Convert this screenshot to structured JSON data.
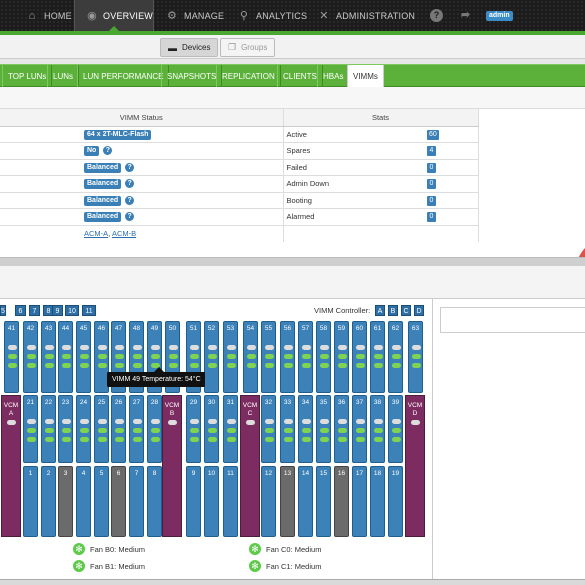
{
  "nav": {
    "items": [
      {
        "label": "HOME",
        "icon": "home-icon"
      },
      {
        "label": "OVERVIEW",
        "icon": "eye-icon"
      },
      {
        "label": "MANAGE",
        "icon": "gear-icon"
      },
      {
        "label": "ANALYTICS",
        "icon": "search-icon"
      },
      {
        "label": "ADMINISTRATION",
        "icon": "tools-icon"
      }
    ],
    "active": "OVERVIEW",
    "user_badge": "admin",
    "help_symbol": "?",
    "share_symbol": "➦"
  },
  "device_toggle": {
    "devices": "Devices",
    "groups": "Groups"
  },
  "tabs": [
    "TOP LUNs",
    "LUNs",
    "LUN PERFORMANCE",
    "SNAPSHOTS",
    "REPLICATION",
    "CLIENTS",
    "HBAs",
    "VIMMs"
  ],
  "active_tab": "VIMMs",
  "status_table": {
    "col_status": "VIMM Status",
    "col_stats": "Stats",
    "rows": [
      {
        "status": "64 x 2T-MLC-Flash",
        "help": false,
        "stat": "Active",
        "value": "60"
      },
      {
        "status": "No",
        "help": true,
        "stat": "Spares",
        "value": "4"
      },
      {
        "status": "Balanced",
        "help": true,
        "stat": "Failed",
        "value": "0"
      },
      {
        "status": "Balanced",
        "help": true,
        "stat": "Admin Down",
        "value": "0"
      },
      {
        "status": "Balanced",
        "help": true,
        "stat": "Booting",
        "value": "0"
      },
      {
        "status": "Balanced",
        "help": true,
        "stat": "Alarmed",
        "value": "0"
      }
    ],
    "acm_links": [
      "ACM-A",
      "ACM-B"
    ]
  },
  "enclosure": {
    "pages": [
      "5",
      "6",
      "7",
      "8",
      "9",
      "10",
      "11"
    ],
    "controller_label": "VIMM Controller:",
    "controllers": [
      "A",
      "B",
      "C",
      "D"
    ],
    "tooltip": "VIMM 49 Temperature: 54°C",
    "fans": [
      {
        "label": "Fan B0: Medium"
      },
      {
        "label": "Fan B1: Medium"
      },
      {
        "label": "Fan C0: Medium"
      },
      {
        "label": "Fan C1: Medium"
      }
    ],
    "top_row": [
      "41",
      "42",
      "43",
      "44",
      "45",
      "46",
      "47",
      "48",
      "49",
      "50",
      "51",
      "52",
      "53",
      "54",
      "55",
      "56",
      "57",
      "58",
      "59",
      "60",
      "61",
      "62",
      "63"
    ],
    "mid_row": [
      "21",
      "22",
      "23",
      "24",
      "25",
      "26",
      "27",
      "28",
      "29",
      "30",
      "31",
      "32",
      "33",
      "34",
      "35",
      "36",
      "37",
      "38",
      "39"
    ],
    "bottom_row": [
      "1",
      "2",
      "3",
      "4",
      "5",
      "6",
      "7",
      "8",
      "9",
      "10",
      "11",
      "12",
      "13",
      "14",
      "15",
      "16",
      "17",
      "18",
      "19"
    ],
    "vcm_labels": [
      "VCM A",
      "VCM B",
      "VCM C",
      "VCM D"
    ]
  }
}
